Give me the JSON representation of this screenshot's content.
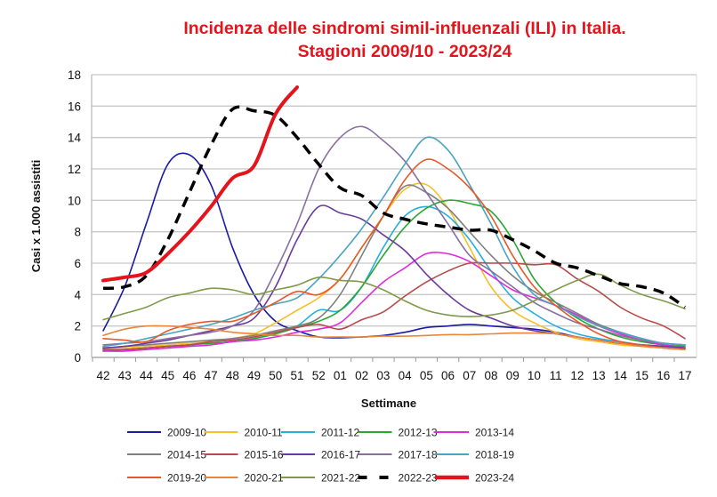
{
  "chart_data": {
    "type": "line",
    "title": [
      "Incidenza delle sindromi simil-influenzali (ILI) in Italia.",
      "Stagioni 2009/10  - 2023/24"
    ],
    "xlabel": "Settimane",
    "ylabel": "Casi x 1.000 assistiti",
    "ylim": [
      0,
      18
    ],
    "yticks": [
      "0",
      "2",
      "4",
      "6",
      "8",
      "10",
      "12",
      "14",
      "16",
      "18"
    ],
    "grid": true,
    "legend_position": "bottom",
    "categories": [
      "42",
      "43",
      "44",
      "45",
      "46",
      "47",
      "48",
      "49",
      "50",
      "51",
      "52",
      "01",
      "02",
      "03",
      "04",
      "05",
      "06",
      "07",
      "08",
      "09",
      "10",
      "11",
      "12",
      "13",
      "14",
      "15",
      "16",
      "17"
    ],
    "series": [
      {
        "name": "2009-10",
        "color": "#1a1aa8",
        "width": 1.6,
        "dash": false,
        "values": [
          1.7,
          4.5,
          8.5,
          12.3,
          12.9,
          11,
          7,
          4,
          2.3,
          1.7,
          1.3,
          1.25,
          1.3,
          1.4,
          1.6,
          1.9,
          2.0,
          2.1,
          2.0,
          1.9,
          1.8,
          1.6,
          1.3,
          1.1,
          0.9,
          0.8,
          0.7,
          0.6
        ]
      },
      {
        "name": "2010-11",
        "color": "#f5c02a",
        "width": 1.6,
        "dash": false,
        "values": [
          0.6,
          0.6,
          0.7,
          0.8,
          0.9,
          1.0,
          1.2,
          1.5,
          2.2,
          3.0,
          3.8,
          5.0,
          7.0,
          9.0,
          10.7,
          11.0,
          9.5,
          7.0,
          4.5,
          3.0,
          2.2,
          1.6,
          1.2,
          1.0,
          0.8,
          0.7,
          0.6,
          0.6
        ]
      },
      {
        "name": "2011-12",
        "color": "#27aee0",
        "width": 1.6,
        "dash": false,
        "values": [
          0.5,
          0.5,
          0.6,
          0.7,
          0.8,
          0.9,
          1.0,
          1.2,
          1.5,
          2.0,
          3.0,
          3.0,
          4.5,
          7.0,
          9.0,
          9.6,
          9.0,
          7.5,
          5.5,
          3.8,
          2.8,
          2.0,
          1.5,
          1.2,
          1.0,
          0.8,
          0.7,
          0.6
        ]
      },
      {
        "name": "2012-13",
        "color": "#2ca532",
        "width": 1.6,
        "dash": false,
        "values": [
          0.4,
          0.5,
          0.6,
          0.7,
          0.8,
          0.9,
          1.0,
          1.2,
          1.5,
          1.9,
          2.3,
          3.0,
          4.5,
          6.5,
          8.3,
          9.5,
          10.0,
          9.8,
          9.3,
          7.5,
          5.0,
          3.5,
          2.5,
          1.8,
          1.3,
          1.0,
          0.8,
          0.7
        ]
      },
      {
        "name": "2013-14",
        "color": "#e128e0",
        "width": 1.6,
        "dash": false,
        "values": [
          0.4,
          0.4,
          0.5,
          0.6,
          0.7,
          0.8,
          1.0,
          1.1,
          1.3,
          1.6,
          1.8,
          2.2,
          3.5,
          4.8,
          5.7,
          6.6,
          6.6,
          6.1,
          5.2,
          4.3,
          3.8,
          3.3,
          2.7,
          2.0,
          1.5,
          1.1,
          0.8,
          0.6
        ]
      },
      {
        "name": "2014-15",
        "color": "#7f7f7f",
        "width": 1.6,
        "dash": false,
        "values": [
          0.6,
          0.7,
          0.8,
          0.9,
          1.0,
          1.1,
          1.2,
          1.4,
          1.7,
          2.0,
          2.5,
          4.0,
          6.5,
          9.0,
          10.9,
          10.5,
          9.5,
          8.0,
          6.5,
          5.2,
          4.2,
          3.5,
          2.8,
          2.1,
          1.6,
          1.2,
          0.9,
          0.8
        ]
      },
      {
        "name": "2015-16",
        "color": "#b84a4a",
        "width": 1.6,
        "dash": false,
        "values": [
          0.5,
          0.5,
          0.6,
          0.7,
          0.8,
          1.0,
          1.1,
          1.3,
          1.6,
          1.9,
          2.1,
          1.8,
          2.4,
          2.9,
          3.9,
          4.8,
          5.5,
          6.0,
          6.0,
          6.0,
          5.9,
          5.9,
          5.0,
          4.2,
          3.2,
          2.5,
          2.0,
          1.2
        ]
      },
      {
        "name": "2016-17",
        "color": "#6a3a9c",
        "width": 1.6,
        "dash": false,
        "values": [
          0.6,
          0.7,
          0.9,
          1.1,
          1.4,
          1.7,
          2.0,
          2.5,
          4.5,
          7.5,
          9.6,
          9.2,
          8.8,
          7.8,
          6.8,
          5.3,
          4.0,
          3.0,
          2.5,
          2.0,
          1.7,
          1.5,
          1.3,
          1.1,
          0.9,
          0.8,
          0.7,
          0.6
        ]
      },
      {
        "name": "2017-18",
        "color": "#8a6f9e",
        "width": 1.6,
        "dash": false,
        "values": [
          0.8,
          0.9,
          1.0,
          1.2,
          1.4,
          1.6,
          2.0,
          3.0,
          5.5,
          8.5,
          12.0,
          14.0,
          14.7,
          13.8,
          12.5,
          10.5,
          8.5,
          6.5,
          5.5,
          4.5,
          3.5,
          2.8,
          2.2,
          1.8,
          1.4,
          1.1,
          0.9,
          0.8
        ]
      },
      {
        "name": "2018-19",
        "color": "#4aa3c0",
        "width": 1.6,
        "dash": false,
        "values": [
          0.7,
          0.9,
          1.2,
          1.5,
          1.8,
          2.1,
          2.5,
          3.0,
          3.4,
          3.8,
          5.0,
          6.5,
          8.2,
          10.2,
          12.3,
          14.0,
          13.2,
          11.0,
          8.5,
          5.8,
          4.0,
          3.3,
          2.6,
          2.0,
          1.6,
          1.2,
          0.9,
          0.8
        ]
      },
      {
        "name": "2019-20",
        "color": "#e8582a",
        "width": 1.6,
        "dash": false,
        "values": [
          1.2,
          1.1,
          1.0,
          1.7,
          2.1,
          2.3,
          2.3,
          2.8,
          3.5,
          4.2,
          4.0,
          5.0,
          7.0,
          9.0,
          11.3,
          12.6,
          12.0,
          10.8,
          9.0,
          6.5,
          4.5,
          3.3,
          2.3,
          1.5,
          1.0,
          0.8,
          0.6,
          0.5
        ]
      },
      {
        "name": "2020-21",
        "color": "#e8873a",
        "width": 1.6,
        "dash": false,
        "values": [
          1.4,
          1.8,
          2.0,
          2.0,
          1.9,
          1.8,
          1.6,
          1.5,
          1.4,
          1.4,
          1.3,
          1.3,
          1.3,
          1.35,
          1.35,
          1.4,
          1.45,
          1.45,
          1.5,
          1.55,
          1.55,
          1.5,
          1.3,
          1.1,
          0.9,
          0.7,
          0.6,
          0.5
        ]
      },
      {
        "name": "2021-22",
        "color": "#7f9a48",
        "width": 1.6,
        "dash": false,
        "values": [
          2.4,
          2.8,
          3.2,
          3.8,
          4.1,
          4.4,
          4.3,
          4.0,
          4.3,
          4.6,
          5.1,
          4.9,
          4.8,
          4.3,
          3.6,
          3.0,
          2.7,
          2.6,
          2.7,
          3.0,
          3.6,
          4.3,
          4.9,
          5.3,
          4.6,
          4.0,
          3.6,
          3.1
        ]
      },
      {
        "name": "2022-23",
        "color": "#000000",
        "width": 3.5,
        "dash": true,
        "values": [
          4.4,
          4.5,
          5.2,
          7.5,
          10.5,
          13.5,
          15.8,
          15.7,
          15.4,
          14.0,
          12.3,
          10.8,
          10.3,
          9.2,
          8.8,
          8.5,
          8.3,
          8.1,
          8.1,
          7.5,
          6.8,
          6.0,
          5.7,
          5.2,
          4.7,
          4.5,
          4.1,
          3.2
        ]
      },
      {
        "name": "2023-24",
        "color": "#e3141c",
        "width": 4,
        "dash": false,
        "values": [
          4.9,
          5.1,
          5.4,
          6.6,
          8.0,
          9.6,
          11.4,
          12.2,
          15.5,
          17.2,
          null,
          null,
          null,
          null,
          null,
          null,
          null,
          null,
          null,
          null,
          null,
          null,
          null,
          null,
          null,
          null,
          null,
          null
        ]
      }
    ]
  }
}
